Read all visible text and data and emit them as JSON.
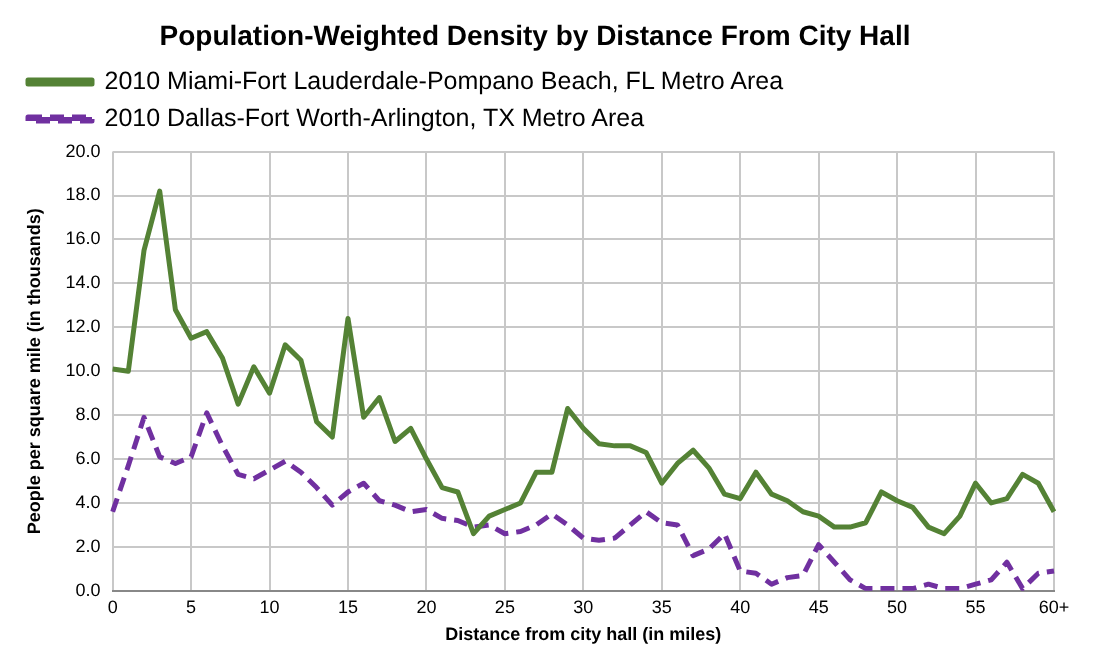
{
  "chart_data": {
    "type": "line",
    "title": "Population-Weighted Density by Distance From City Hall",
    "xlabel": "Distance from city hall (in miles)",
    "ylabel": "People per square mile (in thousands)",
    "categories": [
      "0",
      null,
      null,
      null,
      null,
      "5",
      null,
      null,
      null,
      null,
      "10",
      null,
      null,
      null,
      null,
      "15",
      null,
      null,
      null,
      null,
      "20",
      null,
      null,
      null,
      null,
      "25",
      null,
      null,
      null,
      null,
      "30",
      null,
      null,
      null,
      null,
      "35",
      null,
      null,
      null,
      null,
      "40",
      null,
      null,
      null,
      null,
      "45",
      null,
      null,
      null,
      null,
      "50",
      null,
      null,
      null,
      null,
      "55",
      null,
      null,
      null,
      null,
      "60+"
    ],
    "series": [
      {
        "name": "2010 Miami-Fort Lauderdale-Pompano Beach, FL Metro Area",
        "color": "#548235",
        "line_style": "solid",
        "values": [
          10.1,
          10.0,
          15.5,
          18.2,
          12.8,
          11.5,
          11.8,
          10.6,
          8.5,
          10.2,
          9.0,
          11.2,
          10.5,
          7.7,
          7.0,
          12.4,
          7.9,
          8.8,
          6.8,
          7.4,
          6.0,
          4.7,
          4.5,
          2.6,
          3.4,
          3.7,
          4.0,
          5.4,
          5.4,
          8.3,
          7.4,
          6.7,
          6.6,
          6.6,
          6.3,
          4.9,
          5.8,
          6.4,
          5.6,
          4.4,
          4.2,
          5.4,
          4.4,
          4.1,
          3.6,
          3.4,
          2.9,
          2.9,
          3.1,
          4.5,
          4.1,
          3.8,
          2.9,
          2.6,
          3.4,
          4.9,
          4.0,
          4.2,
          5.3,
          4.9,
          3.6
        ]
      },
      {
        "name": "2010 Dallas-Fort Worth-Arlington, TX Metro Area",
        "color": "#7030a0",
        "line_style": "dashed",
        "values": [
          3.6,
          5.7,
          7.9,
          6.1,
          5.8,
          6.1,
          8.1,
          6.6,
          5.3,
          5.1,
          5.5,
          5.9,
          5.4,
          4.7,
          3.9,
          4.5,
          4.9,
          4.1,
          3.9,
          3.6,
          3.7,
          3.3,
          3.2,
          2.9,
          3.0,
          2.6,
          2.7,
          3.0,
          3.5,
          3.0,
          2.4,
          2.3,
          2.4,
          3.0,
          3.6,
          3.1,
          3.0,
          1.6,
          1.9,
          2.6,
          0.9,
          0.8,
          0.3,
          0.6,
          0.7,
          2.1,
          1.3,
          0.5,
          0.1,
          0.1,
          0.1,
          0.1,
          0.3,
          0.1,
          0.1,
          0.3,
          0.5,
          1.3,
          0.1,
          0.8,
          0.9
        ]
      }
    ],
    "ylim": [
      0,
      20
    ],
    "yticks": [
      {
        "value": 0,
        "label": "0.0"
      },
      {
        "value": 2,
        "label": "2.0"
      },
      {
        "value": 4,
        "label": "4.0"
      },
      {
        "value": 6,
        "label": "6.0"
      },
      {
        "value": 8,
        "label": "8.0"
      },
      {
        "value": 10,
        "label": "10.0"
      },
      {
        "value": 12,
        "label": "12.0"
      },
      {
        "value": 14,
        "label": "14.0"
      },
      {
        "value": 16,
        "label": "16.0"
      },
      {
        "value": 18,
        "label": "18.0"
      },
      {
        "value": 20,
        "label": "20.0"
      }
    ],
    "grid": true,
    "legend": "top left",
    "marker": "none"
  }
}
